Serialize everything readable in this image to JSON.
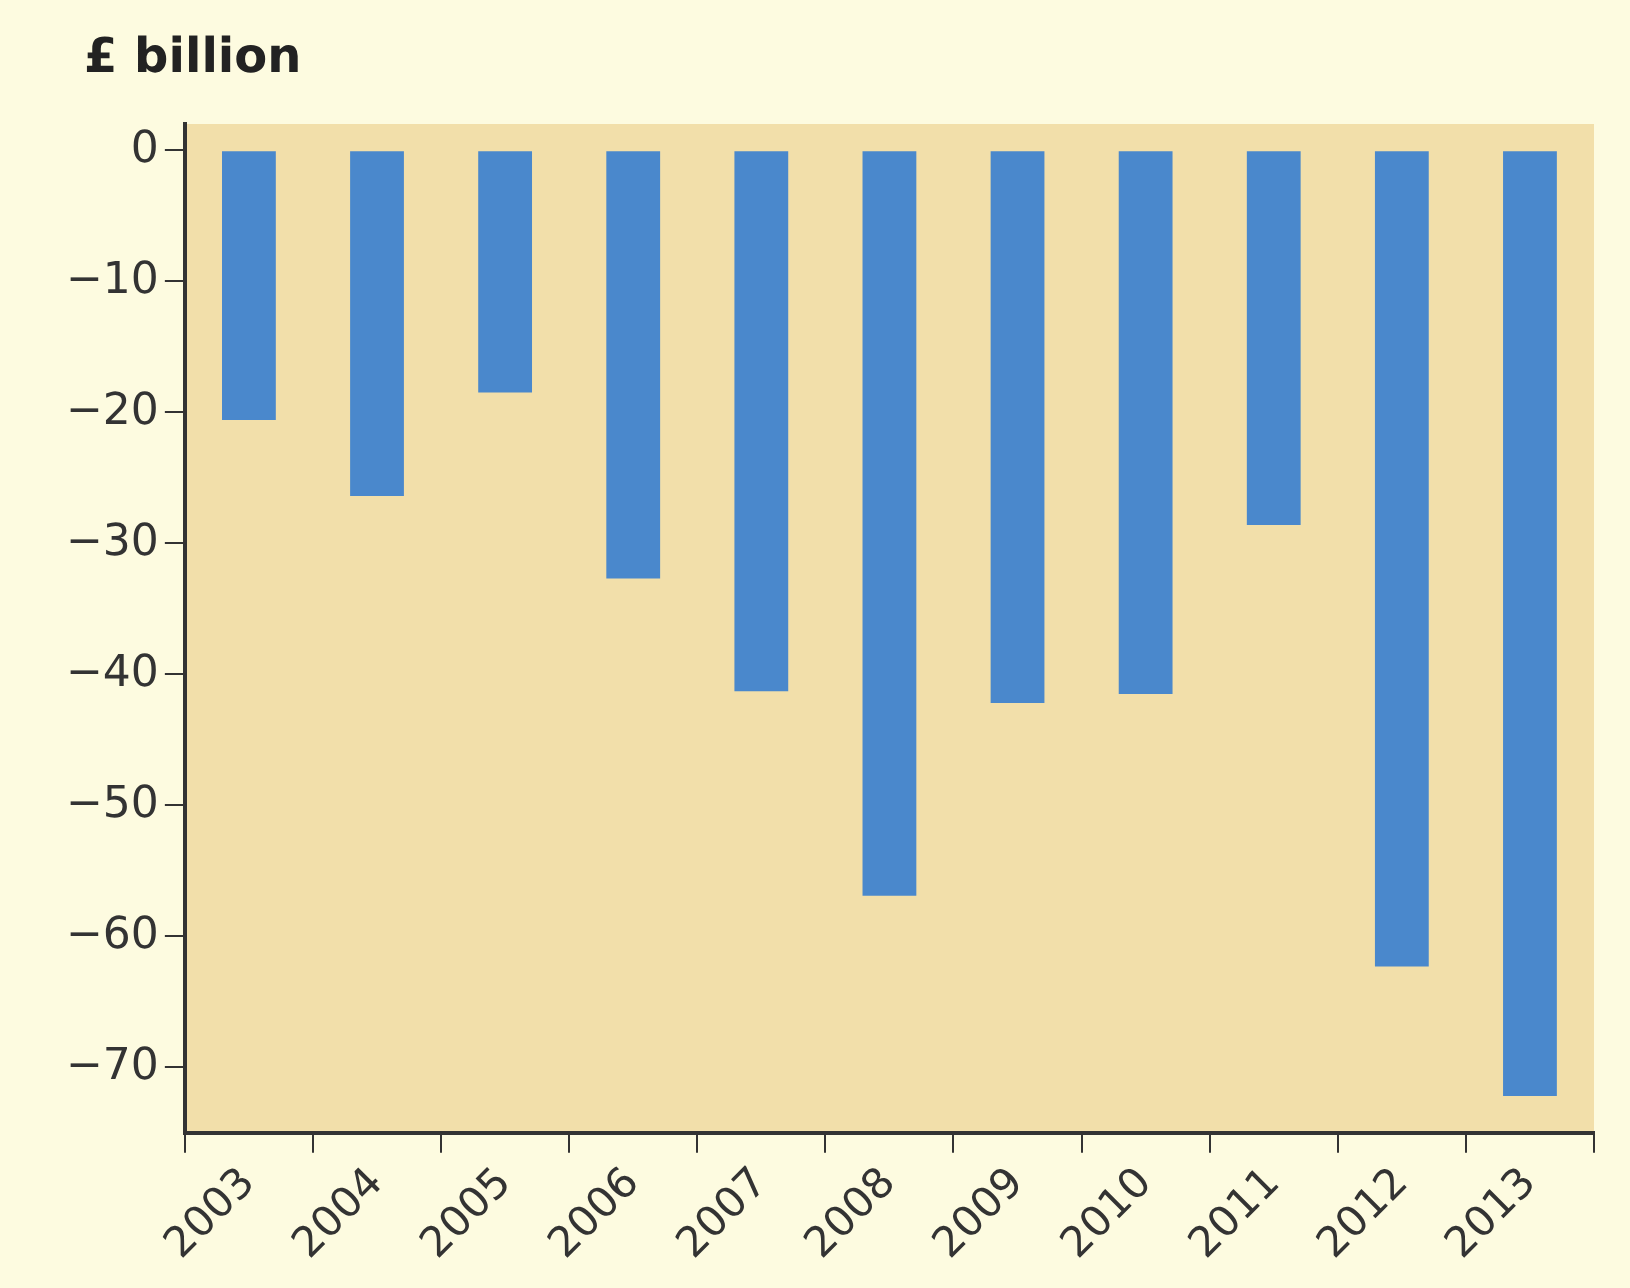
{
  "chart_data": {
    "type": "bar",
    "ylabel": "£ billion",
    "categories": [
      "2003",
      "2004",
      "2005",
      "2006",
      "2007",
      "2008",
      "2009",
      "2010",
      "2011",
      "2012",
      "2013"
    ],
    "values": [
      -20.6,
      -26.4,
      -18.5,
      -32.7,
      -41.3,
      -56.9,
      -42.2,
      -41.5,
      -28.6,
      -62.3,
      -72.2
    ],
    "color": "#4a88cc",
    "ylim": [
      -75,
      2
    ],
    "yticks": [
      0,
      -10,
      -20,
      -30,
      -40,
      -50,
      -60,
      -70
    ],
    "grid": false,
    "legend": false
  }
}
